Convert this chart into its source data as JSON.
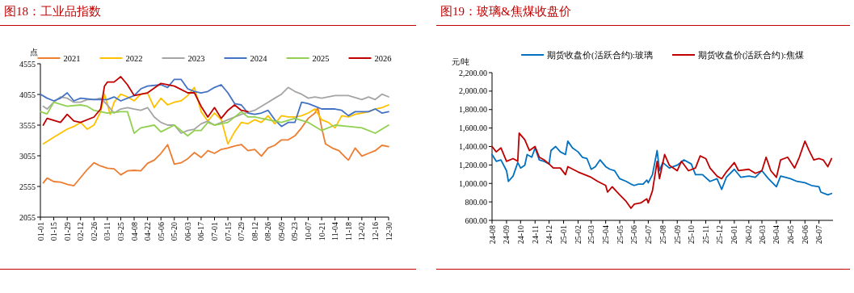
{
  "chart_data": [
    {
      "type": "line",
      "title": "图18：工业品指数",
      "ylabel": "点",
      "legend": "top",
      "xlim": [
        "--01-01",
        "--12-30"
      ],
      "xticks": [
        {
          "value": "--01-01",
          "label": "01-01"
        },
        {
          "value": "--01-15",
          "label": "01-15"
        },
        {
          "value": "--01-29",
          "label": "01-29"
        },
        {
          "value": "--02-12",
          "label": "02-12"
        },
        {
          "value": "--02-26",
          "label": "02-26"
        },
        {
          "value": "--03-11",
          "label": "03-11"
        },
        {
          "value": "--03-25",
          "label": "03-25"
        },
        {
          "value": "--04-08",
          "label": "04-08"
        },
        {
          "value": "--04-22",
          "label": "04-22"
        },
        {
          "value": "--05-06",
          "label": "05-06"
        },
        {
          "value": "--05-20",
          "label": "05-20"
        },
        {
          "value": "--06-03",
          "label": "06-03"
        },
        {
          "value": "--06-17",
          "label": "06-17"
        },
        {
          "value": "--07-01",
          "label": "07-01"
        },
        {
          "value": "--07-15",
          "label": "07-15"
        },
        {
          "value": "--07-29",
          "label": "07-29"
        },
        {
          "value": "--08-12",
          "label": "08-12"
        },
        {
          "value": "--08-26",
          "label": "08-26"
        },
        {
          "value": "--09-09",
          "label": "09-09"
        },
        {
          "value": "--09-23",
          "label": "09-23"
        },
        {
          "value": "--10-07",
          "label": "10-07"
        },
        {
          "value": "--10-21",
          "label": "10-21"
        },
        {
          "value": "--11-04",
          "label": "11-04"
        },
        {
          "value": "--11-18",
          "label": "11-18"
        },
        {
          "value": "--12-02",
          "label": "12-02"
        },
        {
          "value": "--12-16",
          "label": "12-16"
        },
        {
          "value": "--12-30",
          "label": "12-30"
        }
      ],
      "ylim": [
        2055,
        4555
      ],
      "yticks": [
        2055,
        2555,
        3055,
        3555,
        4055,
        4555
      ],
      "series": [
        {
          "name": "2021",
          "color": "#ed7d31",
          "x": [
            "--01-04",
            "--01-08",
            "--01-15",
            "--01-22",
            "--01-29",
            "--02-05",
            "--02-12",
            "--02-19",
            "--02-26",
            "--03-04",
            "--03-11",
            "--03-18",
            "--03-25",
            "--04-01",
            "--04-08",
            "--04-15",
            "--04-22",
            "--04-29",
            "--05-06",
            "--05-13",
            "--05-20",
            "--05-27",
            "--06-03",
            "--06-10",
            "--06-17",
            "--06-24",
            "--07-01",
            "--07-08",
            "--07-15",
            "--07-22",
            "--07-29",
            "--08-05",
            "--08-12",
            "--08-19",
            "--08-26",
            "--09-02",
            "--09-09",
            "--09-16",
            "--09-23",
            "--09-30",
            "--10-07",
            "--10-14",
            "--10-17",
            "--10-21",
            "--10-25",
            "--11-01",
            "--11-08",
            "--11-15",
            "--11-18",
            "--11-25",
            "--12-02",
            "--12-09",
            "--12-16",
            "--12-23",
            "--12-30"
          ],
          "values": [
            2612,
            2691,
            2634,
            2625,
            2590,
            2568,
            2700,
            2831,
            2941,
            2888,
            2853,
            2844,
            2744,
            2809,
            2818,
            2809,
            2932,
            2985,
            3094,
            3235,
            2919,
            2941,
            3007,
            3108,
            3028,
            3138,
            3094,
            3160,
            3182,
            3213,
            3239,
            3138,
            3160,
            3050,
            3182,
            3226,
            3314,
            3314,
            3380,
            3511,
            3665,
            3752,
            3840,
            3511,
            3248,
            3182,
            3138,
            3028,
            2985,
            3182,
            3050,
            3094,
            3138,
            3226,
            3204
          ]
        },
        {
          "name": "2022",
          "color": "#ffc000",
          "x": [
            "--01-04",
            "--01-15",
            "--01-22",
            "--01-29",
            "--02-05",
            "--02-12",
            "--02-19",
            "--02-26",
            "--03-04",
            "--03-08",
            "--03-14",
            "--03-18",
            "--03-25",
            "--04-01",
            "--04-08",
            "--04-15",
            "--04-22",
            "--04-29",
            "--05-06",
            "--05-13",
            "--05-20",
            "--05-27",
            "--06-03",
            "--06-10",
            "--06-17",
            "--06-24",
            "--07-01",
            "--07-08",
            "--07-15",
            "--07-22",
            "--07-29",
            "--08-05",
            "--08-12",
            "--08-19",
            "--08-26",
            "--09-02",
            "--09-09",
            "--09-16",
            "--09-23",
            "--09-30",
            "--10-07",
            "--10-14",
            "--10-21",
            "--10-28",
            "--11-04",
            "--11-11",
            "--11-18",
            "--11-25",
            "--12-02",
            "--12-09",
            "--12-16",
            "--12-23",
            "--12-30"
          ],
          "values": [
            3248,
            3358,
            3423,
            3489,
            3533,
            3599,
            3489,
            3555,
            3774,
            4059,
            3730,
            3928,
            4059,
            4015,
            3950,
            4059,
            4081,
            3840,
            3994,
            3884,
            3928,
            3950,
            4037,
            4169,
            3774,
            3621,
            3752,
            3643,
            3248,
            3445,
            3599,
            3577,
            3643,
            3599,
            3708,
            3577,
            3708,
            3687,
            3687,
            3708,
            3752,
            3818,
            3643,
            3599,
            3511,
            3708,
            3687,
            3730,
            3752,
            3774,
            3818,
            3840,
            3884
          ]
        },
        {
          "name": "2023",
          "color": "#a5a5a5",
          "x": [
            "--01-04",
            "--01-08",
            "--01-15",
            "--01-22",
            "--01-29",
            "--02-05",
            "--02-12",
            "--02-19",
            "--02-26",
            "--03-04",
            "--03-11",
            "--03-18",
            "--03-25",
            "--04-01",
            "--04-08",
            "--04-15",
            "--04-22",
            "--04-29",
            "--05-06",
            "--05-13",
            "--05-20",
            "--05-27",
            "--06-03",
            "--06-10",
            "--06-17",
            "--06-24",
            "--07-01",
            "--07-15",
            "--07-29",
            "--08-12",
            "--08-26",
            "--09-02",
            "--09-09",
            "--09-16",
            "--09-23",
            "--09-30",
            "--10-07",
            "--10-14",
            "--10-21",
            "--11-04",
            "--11-18",
            "--12-02",
            "--12-09",
            "--12-16",
            "--12-23",
            "--12-30"
          ],
          "values": [
            3862,
            3818,
            3928,
            4015,
            3994,
            3928,
            3928,
            3972,
            3972,
            3994,
            3884,
            3752,
            3818,
            3840,
            3818,
            3796,
            3840,
            3687,
            3599,
            3555,
            3555,
            3423,
            3467,
            3489,
            3577,
            3621,
            3555,
            3643,
            3730,
            3796,
            3928,
            3994,
            4059,
            4169,
            4103,
            4059,
            3994,
            4015,
            3994,
            4037,
            4037,
            3972,
            4015,
            3972,
            4059,
            4015
          ]
        },
        {
          "name": "2024",
          "color": "#4472c4",
          "x": [
            "--01-01",
            "--01-08",
            "--01-15",
            "--01-22",
            "--01-29",
            "--02-05",
            "--02-12",
            "--02-26",
            "--03-11",
            "--03-18",
            "--03-25",
            "--04-08",
            "--04-15",
            "--04-22",
            "--05-06",
            "--05-13",
            "--05-20",
            "--05-27",
            "--06-03",
            "--06-10",
            "--06-17",
            "--06-24",
            "--07-01",
            "--07-08",
            "--07-15",
            "--07-22",
            "--07-29",
            "--08-05",
            "--08-12",
            "--08-19",
            "--08-26",
            "--09-02",
            "--09-09",
            "--09-16",
            "--09-23",
            "--09-30",
            "--10-07",
            "--10-14",
            "--10-21",
            "--11-04",
            "--11-11",
            "--11-18",
            "--11-25",
            "--12-02",
            "--12-09",
            "--12-16",
            "--12-23",
            "--12-30"
          ],
          "values": [
            4059,
            3994,
            3950,
            3994,
            4081,
            3950,
            3994,
            3972,
            3972,
            4015,
            3950,
            4037,
            4147,
            4191,
            4213,
            4169,
            4301,
            4301,
            4147,
            4103,
            4081,
            4103,
            4169,
            4213,
            4081,
            3906,
            3884,
            3752,
            3730,
            3752,
            3796,
            3643,
            3533,
            3599,
            3599,
            3928,
            3906,
            3862,
            3818,
            3818,
            3796,
            3708,
            3774,
            3774,
            3774,
            3818,
            3752,
            3774
          ]
        },
        {
          "name": "2025",
          "color": "#92d050",
          "x": [
            "--01-01",
            "--01-08",
            "--01-15",
            "--01-29",
            "--02-12",
            "--02-19",
            "--02-26",
            "--03-11",
            "--03-25",
            "--04-01",
            "--04-08",
            "--04-15",
            "--04-29",
            "--05-06",
            "--05-20",
            "--05-27",
            "--06-03",
            "--06-10",
            "--06-17",
            "--06-24",
            "--07-01",
            "--07-15",
            "--07-29",
            "--08-05",
            "--08-12",
            "--08-26",
            "--09-09",
            "--09-23",
            "--10-07",
            "--10-21",
            "--11-04",
            "--11-18",
            "--12-02",
            "--12-16",
            "--12-30"
          ],
          "values": [
            3774,
            3739,
            3928,
            3862,
            3884,
            3862,
            3796,
            3752,
            3774,
            3774,
            3423,
            3511,
            3555,
            3445,
            3555,
            3467,
            3380,
            3467,
            3467,
            3599,
            3555,
            3599,
            3774,
            3687,
            3687,
            3643,
            3599,
            3665,
            3599,
            3467,
            3555,
            3533,
            3511,
            3423,
            3555
          ]
        },
        {
          "name": "2026",
          "color": "#c00000",
          "x": [
            "--01-04",
            "--01-08",
            "--01-22",
            "--01-29",
            "--02-05",
            "--02-12",
            "--02-26",
            "--03-04",
            "--03-08",
            "--03-11",
            "--03-18",
            "--03-25",
            "--04-01",
            "--04-08",
            "--04-22",
            "--05-06",
            "--05-20",
            "--06-03",
            "--06-10",
            "--06-17",
            "--06-24",
            "--07-01",
            "--07-08",
            "--07-15",
            "--07-22",
            "--07-29",
            "--08-05"
          ],
          "values": [
            3555,
            3665,
            3599,
            3730,
            3621,
            3599,
            3687,
            3818,
            4191,
            4257,
            4257,
            4345,
            4213,
            4037,
            4081,
            4235,
            4191,
            4081,
            4081,
            3862,
            3687,
            3840,
            3665,
            3796,
            3884,
            3796,
            3774
          ]
        }
      ]
    },
    {
      "type": "line",
      "title": "图19：玻璃&焦煤收盘价",
      "ylabel": "元/吨",
      "legend": "top",
      "xlim": [
        "2024-08-01",
        "2026-07-31"
      ],
      "xticks": [
        {
          "value": "2024-08",
          "label": "24-08"
        },
        {
          "value": "2024-09",
          "label": "24-09"
        },
        {
          "value": "2024-10",
          "label": "24-10"
        },
        {
          "value": "2024-11",
          "label": "24-11"
        },
        {
          "value": "2024-12",
          "label": "24-12"
        },
        {
          "value": "2025-01",
          "label": "25-01"
        },
        {
          "value": "2025-02",
          "label": "25-02"
        },
        {
          "value": "2025-03",
          "label": "25-03"
        },
        {
          "value": "2025-04",
          "label": "25-04"
        },
        {
          "value": "2025-05",
          "label": "25-05"
        },
        {
          "value": "2025-06",
          "label": "25-06"
        },
        {
          "value": "2025-07",
          "label": "25-07"
        },
        {
          "value": "2025-08",
          "label": "25-08"
        },
        {
          "value": "2025-09",
          "label": "25-09"
        },
        {
          "value": "2025-10",
          "label": "25-10"
        },
        {
          "value": "2025-11",
          "label": "25-11"
        },
        {
          "value": "2025-12",
          "label": "25-12"
        },
        {
          "value": "2026-01",
          "label": "26-01"
        },
        {
          "value": "2026-02",
          "label": "26-02"
        },
        {
          "value": "2026-03",
          "label": "26-03"
        },
        {
          "value": "2026-04",
          "label": "26-04"
        },
        {
          "value": "2026-05",
          "label": "26-05"
        },
        {
          "value": "2026-06",
          "label": "26-06"
        },
        {
          "value": "2026-07",
          "label": "26-07"
        }
      ],
      "ylim": [
        600,
        2200
      ],
      "yticks": [
        {
          "value": 600,
          "label": "600.00"
        },
        {
          "value": 800,
          "label": "800.00"
        },
        {
          "value": 1000,
          "label": "1,000.00"
        },
        {
          "value": 1200,
          "label": "1,200.00"
        },
        {
          "value": 1400,
          "label": "1,400.00"
        },
        {
          "value": 1600,
          "label": "1,600.00"
        },
        {
          "value": 1800,
          "label": "1,800.00"
        },
        {
          "value": 2000,
          "label": "2,000.00"
        },
        {
          "value": 2200,
          "label": "2,200.00"
        }
      ],
      "series": [
        {
          "name": "期货收盘价(活跃合约):玻璃",
          "color": "#0070c0",
          "x": [
            "2024-08-01",
            "2024-08-10",
            "2024-08-20",
            "2024-09-01",
            "2024-09-05",
            "2024-09-15",
            "2024-09-25",
            "2024-10-01",
            "2024-10-10",
            "2024-10-15",
            "2024-10-25",
            "2024-11-01",
            "2024-11-10",
            "2024-11-20",
            "2024-12-01",
            "2024-12-05",
            "2024-12-15",
            "2024-12-25",
            "2025-01-05",
            "2025-01-10",
            "2025-01-20",
            "2025-02-01",
            "2025-02-10",
            "2025-02-20",
            "2025-03-01",
            "2025-03-10",
            "2025-03-20",
            "2025-04-01",
            "2025-04-10",
            "2025-04-20",
            "2025-05-01",
            "2025-05-15",
            "2025-05-25",
            "2025-06-01",
            "2025-06-10",
            "2025-06-20",
            "2025-06-28",
            "2025-07-01",
            "2025-07-10",
            "2025-07-20",
            "2025-07-25",
            "2025-08-01",
            "2025-08-15",
            "2025-09-01",
            "2025-09-15",
            "2025-10-01",
            "2025-10-10",
            "2025-10-25",
            "2025-11-10",
            "2025-11-25",
            "2025-12-05",
            "2025-12-15",
            "2026-01-01",
            "2026-01-15",
            "2026-02-01",
            "2026-02-15",
            "2026-03-01",
            "2026-03-15",
            "2026-04-01",
            "2026-04-10",
            "2026-04-20",
            "2026-05-01",
            "2026-05-15",
            "2026-06-01",
            "2026-06-15",
            "2026-07-01",
            "2026-07-05",
            "2026-07-20",
            "2026-07-28"
          ],
          "values": [
            1313,
            1240,
            1255,
            1138,
            1022,
            1080,
            1226,
            1167,
            1197,
            1313,
            1284,
            1385,
            1255,
            1240,
            1211,
            1356,
            1400,
            1342,
            1313,
            1458,
            1385,
            1342,
            1284,
            1269,
            1153,
            1182,
            1255,
            1182,
            1153,
            1138,
            1051,
            1022,
            993,
            978,
            993,
            993,
            1036,
            1007,
            1095,
            1356,
            1138,
            1226,
            1167,
            1197,
            1255,
            1211,
            1095,
            1095,
            1022,
            1051,
            935,
            1066,
            1153,
            1066,
            1080,
            1066,
            1138,
            1051,
            964,
            1080,
            1066,
            1051,
            1022,
            1007,
            978,
            964,
            906,
            876,
            891
          ]
        },
        {
          "name": "期货收盘价(活跃合约):焦煤",
          "color": "#c00000",
          "x": [
            "2024-08-01",
            "2024-08-10",
            "2024-08-20",
            "2024-09-01",
            "2024-09-15",
            "2024-09-25",
            "2024-09-28",
            "2024-10-10",
            "2024-10-20",
            "2024-11-01",
            "2024-11-10",
            "2024-11-20",
            "2024-12-01",
            "2024-12-10",
            "2024-12-25",
            "2025-01-05",
            "2025-01-10",
            "2025-02-01",
            "2025-02-15",
            "2025-03-01",
            "2025-03-15",
            "2025-04-01",
            "2025-04-05",
            "2025-04-15",
            "2025-05-01",
            "2025-05-15",
            "2025-05-25",
            "2025-06-01",
            "2025-06-15",
            "2025-06-28",
            "2025-07-01",
            "2025-07-10",
            "2025-07-20",
            "2025-07-25",
            "2025-08-05",
            "2025-08-15",
            "2025-09-01",
            "2025-09-10",
            "2025-09-25",
            "2025-10-10",
            "2025-10-20",
            "2025-11-01",
            "2025-11-10",
            "2025-11-25",
            "2025-12-05",
            "2025-12-15",
            "2026-01-01",
            "2026-01-10",
            "2026-02-01",
            "2026-02-15",
            "2026-03-01",
            "2026-03-10",
            "2026-03-20",
            "2026-04-01",
            "2026-04-10",
            "2026-04-25",
            "2026-05-10",
            "2026-05-20",
            "2026-06-01",
            "2026-06-10",
            "2026-06-20",
            "2026-07-01",
            "2026-07-10",
            "2026-07-20",
            "2026-07-28"
          ],
          "values": [
            1400,
            1342,
            1385,
            1240,
            1269,
            1240,
            1545,
            1473,
            1356,
            1400,
            1284,
            1255,
            1211,
            1167,
            1167,
            1095,
            1182,
            1124,
            1095,
            1066,
            1022,
            978,
            906,
            964,
            876,
            804,
            731,
            775,
            789,
            833,
            789,
            920,
            1240,
            1051,
            1313,
            1197,
            1138,
            1240,
            1138,
            1167,
            1298,
            1269,
            1167,
            1080,
            1051,
            1124,
            1226,
            1138,
            1153,
            1109,
            1138,
            1284,
            1138,
            1066,
            1255,
            1284,
            1167,
            1284,
            1458,
            1356,
            1255,
            1269,
            1255,
            1182,
            1269
          ]
        }
      ]
    }
  ]
}
